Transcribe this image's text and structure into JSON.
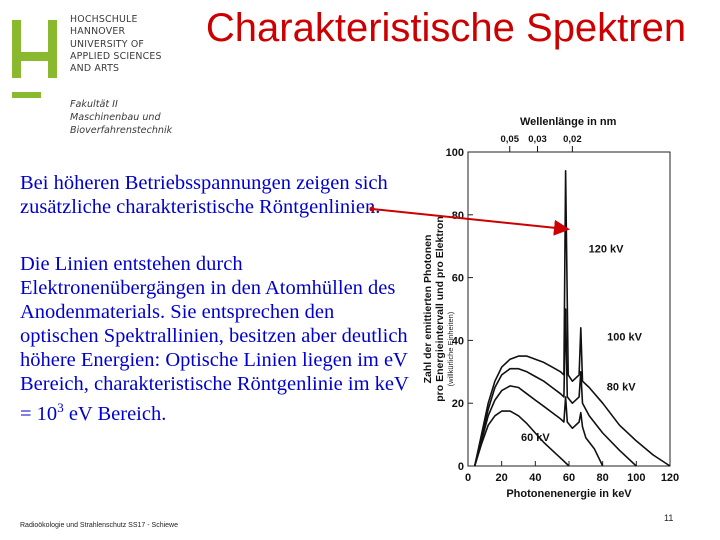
{
  "logo": {
    "lines": [
      "HOCHSCHULE",
      "HANNOVER",
      "UNIVERSITY OF",
      "APPLIED SCIENCES",
      "AND ARTS"
    ],
    "faculty": [
      "Fakultät II",
      "Maschinenbau und",
      "Bioverfahrenstechnik"
    ],
    "color": "#8ab82f"
  },
  "title": "Charakteristische Spektren",
  "paragraph1": "Bei höheren Betriebsspannungen zeigen sich zusätzliche charakteristische Röntgenlinien.",
  "paragraph2": {
    "main": "Die Linien entstehen durch Elektronenübergängen in den Atomhüllen des Anodenmaterials. Sie entsprechen den optischen Spektrallinien, besitzen aber deutlich höhere Energien: Optische Linien liegen im eV Bereich, charakteristische Röntgenlinie im keV = 10",
    "exponent": "3",
    "tail": " eV Bereich."
  },
  "footer": "Radioökologie und Strahlenschutz SS17 - Schiewe",
  "page_number": "11",
  "chart_data": {
    "type": "line",
    "top_axis_label": "Wellenlänge in nm",
    "top_ticks": [
      {
        "label": "0,05",
        "energy": 24.8
      },
      {
        "label": "0,03",
        "energy": 41.3
      },
      {
        "label": "0,02",
        "energy": 62
      }
    ],
    "xlabel": "Photonenenergie in keV",
    "ylabel_line1": "Zahl der emittierten Photonen",
    "ylabel_line2": "pro Energieintervall und pro Elektron",
    "ylabel_note": "(willkürliche Einheiten)",
    "x_ticks": [
      0,
      20,
      40,
      60,
      80,
      100,
      120
    ],
    "y_ticks": [
      0,
      20,
      40,
      60,
      80,
      100
    ],
    "xlim": [
      0,
      120
    ],
    "ylim": [
      0,
      100
    ],
    "series": [
      {
        "name": "60 kV",
        "label_pos": [
          40,
          8
        ],
        "points": [
          [
            4,
            0
          ],
          [
            8,
            7
          ],
          [
            12,
            13
          ],
          [
            16,
            16
          ],
          [
            20,
            17.5
          ],
          [
            25,
            17.5
          ],
          [
            30,
            16
          ],
          [
            35,
            13.5
          ],
          [
            40,
            10.5
          ],
          [
            45,
            7.5
          ],
          [
            50,
            5
          ],
          [
            55,
            2.5
          ],
          [
            60,
            0
          ]
        ]
      },
      {
        "name": "80 kV",
        "label_pos": [
          91,
          24
        ],
        "points": [
          [
            4,
            0
          ],
          [
            8,
            8
          ],
          [
            12,
            16
          ],
          [
            16,
            21
          ],
          [
            20,
            24
          ],
          [
            25,
            25.5
          ],
          [
            30,
            25
          ],
          [
            35,
            23
          ],
          [
            40,
            21
          ],
          [
            45,
            19
          ],
          [
            50,
            17
          ],
          [
            55,
            15
          ],
          [
            57,
            14
          ],
          [
            58,
            22
          ],
          [
            59,
            14
          ],
          [
            62,
            12
          ],
          [
            66,
            14
          ],
          [
            67,
            17
          ],
          [
            68,
            12.5
          ],
          [
            70,
            9
          ],
          [
            75,
            5.5
          ],
          [
            80,
            0
          ]
        ]
      },
      {
        "name": "100 kV",
        "label_pos": [
          93,
          40
        ],
        "points": [
          [
            4,
            0
          ],
          [
            8,
            9
          ],
          [
            12,
            18
          ],
          [
            16,
            25
          ],
          [
            20,
            29
          ],
          [
            25,
            31
          ],
          [
            30,
            31
          ],
          [
            35,
            30
          ],
          [
            40,
            28.5
          ],
          [
            45,
            27
          ],
          [
            50,
            25
          ],
          [
            55,
            23
          ],
          [
            57,
            22
          ],
          [
            58,
            50
          ],
          [
            59,
            22
          ],
          [
            62,
            20
          ],
          [
            66,
            22
          ],
          [
            67,
            30
          ],
          [
            68,
            20
          ],
          [
            72,
            16
          ],
          [
            80,
            10.5
          ],
          [
            90,
            5
          ],
          [
            100,
            0
          ]
        ]
      },
      {
        "name": "120 kV",
        "label_pos": [
          82,
          68
        ],
        "points": [
          [
            4,
            0
          ],
          [
            8,
            10
          ],
          [
            12,
            20
          ],
          [
            16,
            27
          ],
          [
            20,
            31.5
          ],
          [
            25,
            34
          ],
          [
            30,
            35
          ],
          [
            35,
            35
          ],
          [
            40,
            34
          ],
          [
            45,
            33
          ],
          [
            50,
            31.5
          ],
          [
            55,
            30
          ],
          [
            57,
            29
          ],
          [
            58,
            94
          ],
          [
            59.5,
            29
          ],
          [
            62,
            27
          ],
          [
            66,
            29
          ],
          [
            67,
            44
          ],
          [
            68,
            27
          ],
          [
            72,
            25
          ],
          [
            80,
            20
          ],
          [
            90,
            13
          ],
          [
            100,
            8
          ],
          [
            110,
            3.5
          ],
          [
            120,
            0
          ]
        ]
      }
    ]
  }
}
